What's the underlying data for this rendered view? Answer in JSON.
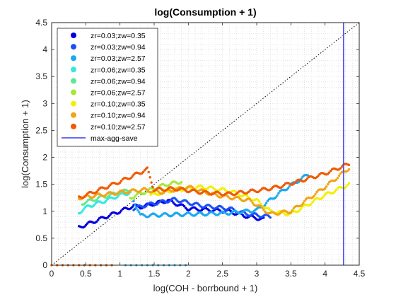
{
  "chart_data": {
    "type": "scatter",
    "title": "log(Consumption + 1)",
    "xlabel": "log(COH - borrbound + 1)",
    "ylabel": "log(Consumption + 1)",
    "xlim": [
      0,
      4.5
    ],
    "ylim": [
      0,
      4.5
    ],
    "xticks": [
      0,
      0.5,
      1,
      1.5,
      2,
      2.5,
      3,
      3.5,
      4,
      4.5
    ],
    "yticks": [
      0,
      0.5,
      1,
      1.5,
      2,
      2.5,
      3,
      3.5,
      4,
      4.5
    ],
    "xtick_labels": [
      "0",
      "0.5",
      "1",
      "1.5",
      "2",
      "2.5",
      "3",
      "3.5",
      "4",
      "4.5"
    ],
    "ytick_labels": [
      "0",
      "0.5",
      "1",
      "1.5",
      "2",
      "2.5",
      "3",
      "3.5",
      "4",
      "4.5"
    ],
    "grid": "minor-dotted",
    "legend_position": "top-left",
    "reference_line": {
      "type": "45-degree",
      "style": "dotted",
      "color": "#000000"
    },
    "vline": {
      "name": "max-agg-save",
      "x": 4.27,
      "color": "#4f4ff0"
    },
    "series": [
      {
        "name": "zr=0.03;zw=0.35",
        "color": "#0000e0",
        "x0": 0.0,
        "anchors": [
          [
            0.4,
            0.7
          ],
          [
            1.2,
            1.1
          ],
          [
            1.3,
            1.08
          ],
          [
            1.7,
            1.2
          ],
          [
            2.0,
            1.05
          ],
          [
            2.6,
            1.0
          ],
          [
            2.8,
            0.92
          ],
          [
            3.1,
            0.85
          ]
        ]
      },
      {
        "name": "zr=0.03;zw=0.94",
        "color": "#1a4ff5",
        "x0": 0.0,
        "anchors": [
          [
            1.2,
            1.05
          ],
          [
            1.4,
            1.12
          ],
          [
            1.8,
            1.22
          ],
          [
            2.2,
            1.1
          ],
          [
            2.6,
            1.05
          ],
          [
            2.85,
            0.95
          ],
          [
            3.2,
            0.9
          ]
        ]
      },
      {
        "name": "zr=0.03;zw=2.57",
        "color": "#1aa8f0",
        "x0": 1.08,
        "anchors": [
          [
            1.2,
            1.2
          ],
          [
            1.3,
            0.92
          ],
          [
            1.8,
            0.94
          ],
          [
            2.2,
            0.95
          ],
          [
            2.6,
            0.97
          ],
          [
            3.0,
            1.02
          ],
          [
            3.4,
            1.4
          ],
          [
            3.75,
            1.68
          ]
        ]
      },
      {
        "name": "zr=0.06;zw=0.35",
        "color": "#37e8e0",
        "x0": 0.0,
        "anchors": [
          [
            0.4,
            0.98
          ],
          [
            0.55,
            1.1
          ],
          [
            0.8,
            1.2
          ],
          [
            1.0,
            1.3
          ],
          [
            1.15,
            1.35
          ]
        ]
      },
      {
        "name": "zr=0.06;zw=0.94",
        "color": "#60e890",
        "x0": 0.0,
        "anchors": [
          [
            0.45,
            1.15
          ],
          [
            0.7,
            1.25
          ],
          [
            1.0,
            1.35
          ],
          [
            1.15,
            1.4
          ]
        ]
      },
      {
        "name": "zr=0.06;zw=2.57",
        "color": "#a6e838",
        "x0": 0.0,
        "anchors": [
          [
            1.15,
            1.25
          ],
          [
            1.35,
            1.35
          ],
          [
            1.55,
            1.45
          ],
          [
            1.7,
            1.5
          ],
          [
            1.9,
            1.55
          ]
        ]
      },
      {
        "name": "zr=0.10;zw=0.35",
        "color": "#f2f000",
        "x0": 0.0,
        "anchors": [
          [
            1.45,
            1.3
          ],
          [
            1.8,
            1.4
          ],
          [
            2.2,
            1.45
          ],
          [
            2.6,
            1.38
          ],
          [
            3.0,
            1.2
          ],
          [
            3.2,
            1.0
          ],
          [
            3.5,
            0.95
          ],
          [
            4.0,
            1.3
          ],
          [
            4.35,
            1.5
          ]
        ]
      },
      {
        "name": "zr=0.10;zw=0.94",
        "color": "#f0a418",
        "x0": 0.0,
        "anchors": [
          [
            0.4,
            1.25
          ],
          [
            0.7,
            1.3
          ],
          [
            1.0,
            1.35
          ],
          [
            1.35,
            1.4
          ],
          [
            1.6,
            1.35
          ],
          [
            2.0,
            1.45
          ],
          [
            2.4,
            1.3
          ],
          [
            2.9,
            1.2
          ],
          [
            3.2,
            0.95
          ],
          [
            3.5,
            1.0
          ],
          [
            4.0,
            1.45
          ],
          [
            4.35,
            1.8
          ]
        ]
      },
      {
        "name": "zr=0.10;zw=2.57",
        "color": "#f05a00",
        "x0": 0.0,
        "anchors": [
          [
            0.4,
            1.25
          ],
          [
            0.7,
            1.4
          ],
          [
            1.0,
            1.55
          ],
          [
            1.4,
            1.78
          ],
          [
            1.5,
            1.4
          ],
          [
            1.8,
            1.42
          ],
          [
            2.2,
            1.35
          ],
          [
            2.6,
            1.32
          ],
          [
            3.1,
            1.4
          ],
          [
            3.3,
            1.45
          ],
          [
            3.6,
            1.55
          ],
          [
            4.0,
            1.7
          ],
          [
            4.35,
            1.88
          ]
        ]
      }
    ]
  }
}
